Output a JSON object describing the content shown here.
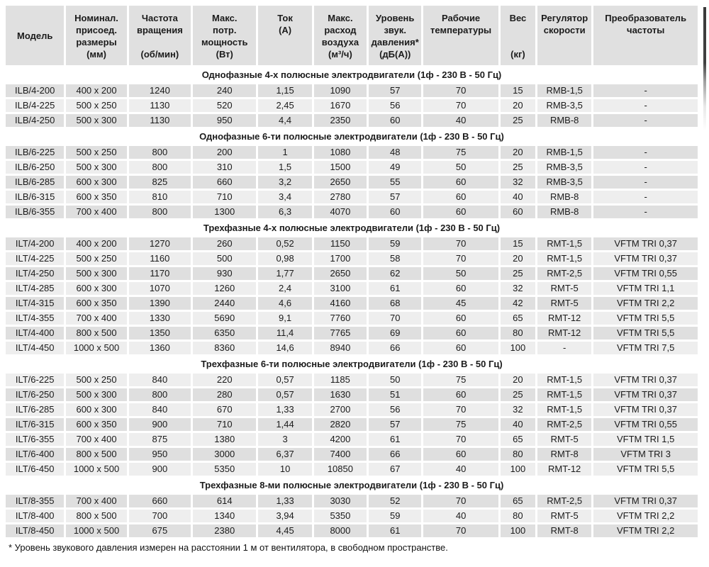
{
  "colors": {
    "row_dark": "#dfdfdf",
    "row_light": "#eeeeee",
    "header_bg": "#e0e0e0",
    "text": "#1b1b1b",
    "page_bg": "#ffffff"
  },
  "table": {
    "columns": [
      {
        "id": "model",
        "top": "Модель",
        "bottom": "",
        "layout": "center"
      },
      {
        "id": "size",
        "top": "Номинал.\nприсоед.\nразмеры",
        "bottom": "(мм)",
        "layout": "spread"
      },
      {
        "id": "speed",
        "top": "Частота\nвращения",
        "bottom": "(об/мин)",
        "layout": "spread"
      },
      {
        "id": "power",
        "top": "Макс.\nпотр.\nмощность",
        "bottom": "(Вт)",
        "layout": "spread"
      },
      {
        "id": "current",
        "top": "Ток\n(А)",
        "bottom": "",
        "layout": "top"
      },
      {
        "id": "airflow",
        "top": "Макс.\nрасход\nвоздуха",
        "bottom": "(м³/ч)",
        "layout": "spread"
      },
      {
        "id": "noise",
        "top": "Уровень\nзвук.\nдавления*",
        "bottom": "(дБ(А))",
        "layout": "spread"
      },
      {
        "id": "temp",
        "top": "Рабочие\nтемпературы",
        "bottom": "",
        "layout": "top"
      },
      {
        "id": "weight",
        "top": "Вес",
        "bottom": "(кг)",
        "layout": "spread"
      },
      {
        "id": "regulator",
        "top": "Регулятор\nскорости",
        "bottom": "",
        "layout": "top"
      },
      {
        "id": "converter",
        "top": "Преобразователь\nчастоты",
        "bottom": "",
        "layout": "top"
      }
    ],
    "sections": [
      {
        "title": "Однофазные 4-х полюсные электродвигатели (1ф - 230 В - 50 Гц)",
        "row_shade_start": "dark",
        "rows": [
          [
            "ILB/4-200",
            "400 x 200",
            "1240",
            "240",
            "1,15",
            "1090",
            "57",
            "70",
            "15",
            "RMB-1,5",
            "-"
          ],
          [
            "ILB/4-225",
            "500 x 250",
            "1130",
            "520",
            "2,45",
            "1670",
            "56",
            "70",
            "20",
            "RMB-3,5",
            "-"
          ],
          [
            "ILB/4-250",
            "500 x 300",
            "1130",
            "950",
            "4,4",
            "2350",
            "60",
            "40",
            "25",
            "RMB-8",
            "-"
          ]
        ]
      },
      {
        "title": "Однофазные 6-ти полюсные электродвигатели (1ф - 230 В - 50 Гц)",
        "row_shade_start": "dark",
        "rows": [
          [
            "ILB/6-225",
            "500 x 250",
            "800",
            "200",
            "1",
            "1080",
            "48",
            "75",
            "20",
            "RMB-1,5",
            "-"
          ],
          [
            "ILB/6-250",
            "500 x 300",
            "800",
            "310",
            "1,5",
            "1500",
            "49",
            "50",
            "25",
            "RMB-3,5",
            "-"
          ],
          [
            "ILB/6-285",
            "600 x 300",
            "825",
            "660",
            "3,2",
            "2650",
            "55",
            "60",
            "32",
            "RMB-3,5",
            "-"
          ],
          [
            "ILB/6-315",
            "600 x 350",
            "810",
            "710",
            "3,4",
            "2780",
            "57",
            "60",
            "40",
            "RMB-8",
            "-"
          ],
          [
            "ILB/6-355",
            "700 x 400",
            "800",
            "1300",
            "6,3",
            "4070",
            "60",
            "60",
            "60",
            "RMB-8",
            "-"
          ]
        ]
      },
      {
        "title": "Трехфазные 4-х полюсные электродвигатели (1ф - 230 В - 50 Гц)",
        "row_shade_start": "dark",
        "rows": [
          [
            "ILT/4-200",
            "400 x 200",
            "1270",
            "260",
            "0,52",
            "1150",
            "59",
            "70",
            "15",
            "RMT-1,5",
            "VFTM TRI 0,37"
          ],
          [
            "ILT/4-225",
            "500 x 250",
            "1160",
            "500",
            "0,98",
            "1700",
            "58",
            "70",
            "20",
            "RMT-1,5",
            "VFTM TRI 0,37"
          ],
          [
            "ILT/4-250",
            "500 x 300",
            "1170",
            "930",
            "1,77",
            "2650",
            "62",
            "50",
            "25",
            "RMT-2,5",
            "VFTM TRI 0,55"
          ],
          [
            "ILT/4-285",
            "600 x 300",
            "1070",
            "1260",
            "2,4",
            "3100",
            "61",
            "60",
            "32",
            "RMT-5",
            "VFTM TRI 1,1"
          ],
          [
            "ILT/4-315",
            "600 x 350",
            "1390",
            "2440",
            "4,6",
            "4160",
            "68",
            "45",
            "42",
            "RMT-5",
            "VFTM TRI 2,2"
          ],
          [
            "ILT/4-355",
            "700 x 400",
            "1330",
            "5690",
            "9,1",
            "7760",
            "70",
            "60",
            "65",
            "RMT-12",
            "VFTM TRI 5,5"
          ],
          [
            "ILT/4-400",
            "800 x 500",
            "1350",
            "6350",
            "11,4",
            "7765",
            "69",
            "60",
            "80",
            "RMT-12",
            "VFTM TRI 5,5"
          ],
          [
            "ILT/4-450",
            "1000 x 500",
            "1360",
            "8360",
            "14,6",
            "8940",
            "66",
            "60",
            "100",
            "-",
            "VFTM TRI 7,5"
          ]
        ]
      },
      {
        "title": "Трехфазные 6-ти полюсные электродвигатели (1ф - 230 В - 50 Гц)",
        "row_shade_start": "light",
        "rows": [
          [
            "ILT/6-225",
            "500 x 250",
            "840",
            "220",
            "0,57",
            "1185",
            "50",
            "75",
            "20",
            "RMT-1,5",
            "VFTM TRI 0,37"
          ],
          [
            "ILT/6-250",
            "500 x 300",
            "800",
            "280",
            "0,57",
            "1630",
            "51",
            "60",
            "25",
            "RMT-1,5",
            "VFTM TRI 0,37"
          ],
          [
            "ILT/6-285",
            "600 x 300",
            "840",
            "670",
            "1,33",
            "2700",
            "56",
            "70",
            "32",
            "RMT-1,5",
            "VFTM TRI 0,37"
          ],
          [
            "ILT/6-315",
            "600 x 350",
            "900",
            "710",
            "1,44",
            "2820",
            "57",
            "75",
            "40",
            "RMT-2,5",
            "VFTM TRI 0,55"
          ],
          [
            "ILT/6-355",
            "700 x 400",
            "875",
            "1380",
            "3",
            "4200",
            "61",
            "70",
            "65",
            "RMT-5",
            "VFTM TRI 1,5"
          ],
          [
            "ILT/6-400",
            "800 x 500",
            "950",
            "3000",
            "6,37",
            "7400",
            "66",
            "60",
            "80",
            "RMT-8",
            "VFTM TRI 3"
          ],
          [
            "ILT/6-450",
            "1000 x 500",
            "900",
            "5350",
            "10",
            "10850",
            "67",
            "40",
            "100",
            "RMT-12",
            "VFTM TRI 5,5"
          ]
        ]
      },
      {
        "title": "Трехфазные 8-ми полюсные электродвигатели (1ф - 230 В - 50 Гц)",
        "row_shade_start": "dark",
        "rows": [
          [
            "ILT/8-355",
            "700 x 400",
            "660",
            "614",
            "1,33",
            "3030",
            "52",
            "70",
            "65",
            "RMT-2,5",
            "VFTM TRI 0,37"
          ],
          [
            "ILT/8-400",
            "800 x 500",
            "700",
            "1340",
            "3,94",
            "5350",
            "59",
            "40",
            "80",
            "RMT-5",
            "VFTM TRI 2,2"
          ],
          [
            "ILT/8-450",
            "1000 x 500",
            "675",
            "2380",
            "4,45",
            "8000",
            "61",
            "70",
            "100",
            "RMT-8",
            "VFTM TRI 2,2"
          ]
        ]
      }
    ],
    "footnote": "* Уровень звукового давления измерен на расстоянии 1 м от вентилятора, в свободном пространстве."
  }
}
